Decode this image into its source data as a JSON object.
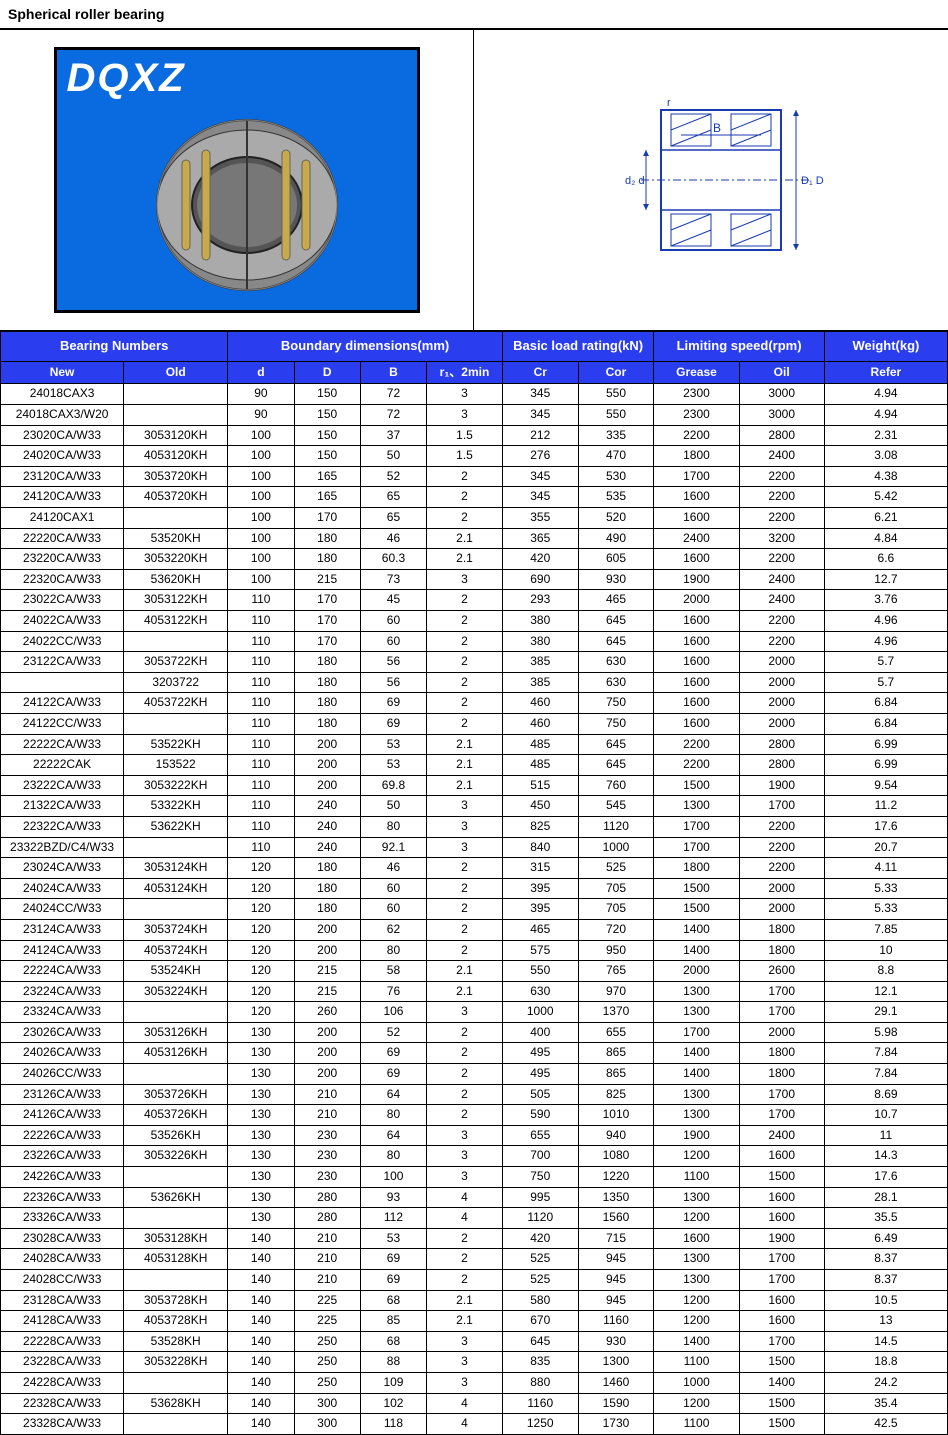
{
  "page": {
    "title": "Spherical roller bearing",
    "logo_text": "DQXZ"
  },
  "table": {
    "group_headers": {
      "bearing_numbers": "Bearing Numbers",
      "boundary": "Boundary dimensions(mm)",
      "basic_load": "Basic load rating(kN)",
      "limiting": "Limiting speed(rpm)",
      "weight": "Weight(kg)"
    },
    "sub_headers": {
      "new": "New",
      "old": "Old",
      "d": "d",
      "D": "D",
      "B": "B",
      "r": "r₁、2min",
      "cr": "Cr",
      "cor": "Cor",
      "grease": "Grease",
      "oil": "Oil",
      "refer": "Refer"
    },
    "colors": {
      "header_bg": "#2a3ef0",
      "header_text": "#ffffff",
      "cell_bg": "#ffffff",
      "cell_text": "#000000",
      "border": "#000000"
    },
    "col_widths_pct": [
      13,
      11,
      7,
      7,
      7,
      8,
      8,
      8,
      9,
      9,
      13
    ],
    "rows": [
      [
        "24018CAX3",
        "",
        "90",
        "150",
        "72",
        "3",
        "345",
        "550",
        "2300",
        "3000",
        "4.94"
      ],
      [
        "24018CAX3/W20",
        "",
        "90",
        "150",
        "72",
        "3",
        "345",
        "550",
        "2300",
        "3000",
        "4.94"
      ],
      [
        "23020CA/W33",
        "3053120KH",
        "100",
        "150",
        "37",
        "1.5",
        "212",
        "335",
        "2200",
        "2800",
        "2.31"
      ],
      [
        "24020CA/W33",
        "4053120KH",
        "100",
        "150",
        "50",
        "1.5",
        "276",
        "470",
        "1800",
        "2400",
        "3.08"
      ],
      [
        "23120CA/W33",
        "3053720KH",
        "100",
        "165",
        "52",
        "2",
        "345",
        "530",
        "1700",
        "2200",
        "4.38"
      ],
      [
        "24120CA/W33",
        "4053720KH",
        "100",
        "165",
        "65",
        "2",
        "345",
        "535",
        "1600",
        "2200",
        "5.42"
      ],
      [
        "24120CAX1",
        "",
        "100",
        "170",
        "65",
        "2",
        "355",
        "520",
        "1600",
        "2200",
        "6.21"
      ],
      [
        "22220CA/W33",
        "53520KH",
        "100",
        "180",
        "46",
        "2.1",
        "365",
        "490",
        "2400",
        "3200",
        "4.84"
      ],
      [
        "23220CA/W33",
        "3053220KH",
        "100",
        "180",
        "60.3",
        "2.1",
        "420",
        "605",
        "1600",
        "2200",
        "6.6"
      ],
      [
        "22320CA/W33",
        "53620KH",
        "100",
        "215",
        "73",
        "3",
        "690",
        "930",
        "1900",
        "2400",
        "12.7"
      ],
      [
        "23022CA/W33",
        "3053122KH",
        "110",
        "170",
        "45",
        "2",
        "293",
        "465",
        "2000",
        "2400",
        "3.76"
      ],
      [
        "24022CA/W33",
        "4053122KH",
        "110",
        "170",
        "60",
        "2",
        "380",
        "645",
        "1600",
        "2200",
        "4.96"
      ],
      [
        "24022CC/W33",
        "",
        "110",
        "170",
        "60",
        "2",
        "380",
        "645",
        "1600",
        "2200",
        "4.96"
      ],
      [
        "23122CA/W33",
        "3053722KH",
        "110",
        "180",
        "56",
        "2",
        "385",
        "630",
        "1600",
        "2000",
        "5.7"
      ],
      [
        "",
        "3203722",
        "110",
        "180",
        "56",
        "2",
        "385",
        "630",
        "1600",
        "2000",
        "5.7"
      ],
      [
        "24122CA/W33",
        "4053722KH",
        "110",
        "180",
        "69",
        "2",
        "460",
        "750",
        "1600",
        "2000",
        "6.84"
      ],
      [
        "24122CC/W33",
        "",
        "110",
        "180",
        "69",
        "2",
        "460",
        "750",
        "1600",
        "2000",
        "6.84"
      ],
      [
        "22222CA/W33",
        "53522KH",
        "110",
        "200",
        "53",
        "2.1",
        "485",
        "645",
        "2200",
        "2800",
        "6.99"
      ],
      [
        "22222CAK",
        "153522",
        "110",
        "200",
        "53",
        "2.1",
        "485",
        "645",
        "2200",
        "2800",
        "6.99"
      ],
      [
        "23222CA/W33",
        "3053222KH",
        "110",
        "200",
        "69.8",
        "2.1",
        "515",
        "760",
        "1500",
        "1900",
        "9.54"
      ],
      [
        "21322CA/W33",
        "53322KH",
        "110",
        "240",
        "50",
        "3",
        "450",
        "545",
        "1300",
        "1700",
        "11.2"
      ],
      [
        "22322CA/W33",
        "53622KH",
        "110",
        "240",
        "80",
        "3",
        "825",
        "1120",
        "1700",
        "2200",
        "17.6"
      ],
      [
        "23322BZD/C4/W33",
        "",
        "110",
        "240",
        "92.1",
        "3",
        "840",
        "1000",
        "1700",
        "2200",
        "20.7"
      ],
      [
        "23024CA/W33",
        "3053124KH",
        "120",
        "180",
        "46",
        "2",
        "315",
        "525",
        "1800",
        "2200",
        "4.11"
      ],
      [
        "24024CA/W33",
        "4053124KH",
        "120",
        "180",
        "60",
        "2",
        "395",
        "705",
        "1500",
        "2000",
        "5.33"
      ],
      [
        "24024CC/W33",
        "",
        "120",
        "180",
        "60",
        "2",
        "395",
        "705",
        "1500",
        "2000",
        "5.33"
      ],
      [
        "23124CA/W33",
        "3053724KH",
        "120",
        "200",
        "62",
        "2",
        "465",
        "720",
        "1400",
        "1800",
        "7.85"
      ],
      [
        "24124CA/W33",
        "4053724KH",
        "120",
        "200",
        "80",
        "2",
        "575",
        "950",
        "1400",
        "1800",
        "10"
      ],
      [
        "22224CA/W33",
        "53524KH",
        "120",
        "215",
        "58",
        "2.1",
        "550",
        "765",
        "2000",
        "2600",
        "8.8"
      ],
      [
        "23224CA/W33",
        "3053224KH",
        "120",
        "215",
        "76",
        "2.1",
        "630",
        "970",
        "1300",
        "1700",
        "12.1"
      ],
      [
        "23324CA/W33",
        "",
        "120",
        "260",
        "106",
        "3",
        "1000",
        "1370",
        "1300",
        "1700",
        "29.1"
      ],
      [
        "23026CA/W33",
        "3053126KH",
        "130",
        "200",
        "52",
        "2",
        "400",
        "655",
        "1700",
        "2000",
        "5.98"
      ],
      [
        "24026CA/W33",
        "4053126KH",
        "130",
        "200",
        "69",
        "2",
        "495",
        "865",
        "1400",
        "1800",
        "7.84"
      ],
      [
        "24026CC/W33",
        "",
        "130",
        "200",
        "69",
        "2",
        "495",
        "865",
        "1400",
        "1800",
        "7.84"
      ],
      [
        "23126CA/W33",
        "3053726KH",
        "130",
        "210",
        "64",
        "2",
        "505",
        "825",
        "1300",
        "1700",
        "8.69"
      ],
      [
        "24126CA/W33",
        "4053726KH",
        "130",
        "210",
        "80",
        "2",
        "590",
        "1010",
        "1300",
        "1700",
        "10.7"
      ],
      [
        "22226CA/W33",
        "53526KH",
        "130",
        "230",
        "64",
        "3",
        "655",
        "940",
        "1900",
        "2400",
        "11"
      ],
      [
        "23226CA/W33",
        "3053226KH",
        "130",
        "230",
        "80",
        "3",
        "700",
        "1080",
        "1200",
        "1600",
        "14.3"
      ],
      [
        "24226CA/W33",
        "",
        "130",
        "230",
        "100",
        "3",
        "750",
        "1220",
        "1100",
        "1500",
        "17.6"
      ],
      [
        "22326CA/W33",
        "53626KH",
        "130",
        "280",
        "93",
        "4",
        "995",
        "1350",
        "1300",
        "1600",
        "28.1"
      ],
      [
        "23326CA/W33",
        "",
        "130",
        "280",
        "112",
        "4",
        "1120",
        "1560",
        "1200",
        "1600",
        "35.5"
      ],
      [
        "23028CA/W33",
        "3053128KH",
        "140",
        "210",
        "53",
        "2",
        "420",
        "715",
        "1600",
        "1900",
        "6.49"
      ],
      [
        "24028CA/W33",
        "4053128KH",
        "140",
        "210",
        "69",
        "2",
        "525",
        "945",
        "1300",
        "1700",
        "8.37"
      ],
      [
        "24028CC/W33",
        "",
        "140",
        "210",
        "69",
        "2",
        "525",
        "945",
        "1300",
        "1700",
        "8.37"
      ],
      [
        "23128CA/W33",
        "3053728KH",
        "140",
        "225",
        "68",
        "2.1",
        "580",
        "945",
        "1200",
        "1600",
        "10.5"
      ],
      [
        "24128CA/W33",
        "4053728KH",
        "140",
        "225",
        "85",
        "2.1",
        "670",
        "1160",
        "1200",
        "1600",
        "13"
      ],
      [
        "22228CA/W33",
        "53528KH",
        "140",
        "250",
        "68",
        "3",
        "645",
        "930",
        "1400",
        "1700",
        "14.5"
      ],
      [
        "23228CA/W33",
        "3053228KH",
        "140",
        "250",
        "88",
        "3",
        "835",
        "1300",
        "1100",
        "1500",
        "18.8"
      ],
      [
        "24228CA/W33",
        "",
        "140",
        "250",
        "109",
        "3",
        "880",
        "1460",
        "1000",
        "1400",
        "24.2"
      ],
      [
        "22328CA/W33",
        "53628KH",
        "140",
        "300",
        "102",
        "4",
        "1160",
        "1590",
        "1200",
        "1500",
        "35.4"
      ],
      [
        "23328CA/W33",
        "",
        "140",
        "300",
        "118",
        "4",
        "1250",
        "1730",
        "1100",
        "1500",
        "42.5"
      ]
    ]
  }
}
